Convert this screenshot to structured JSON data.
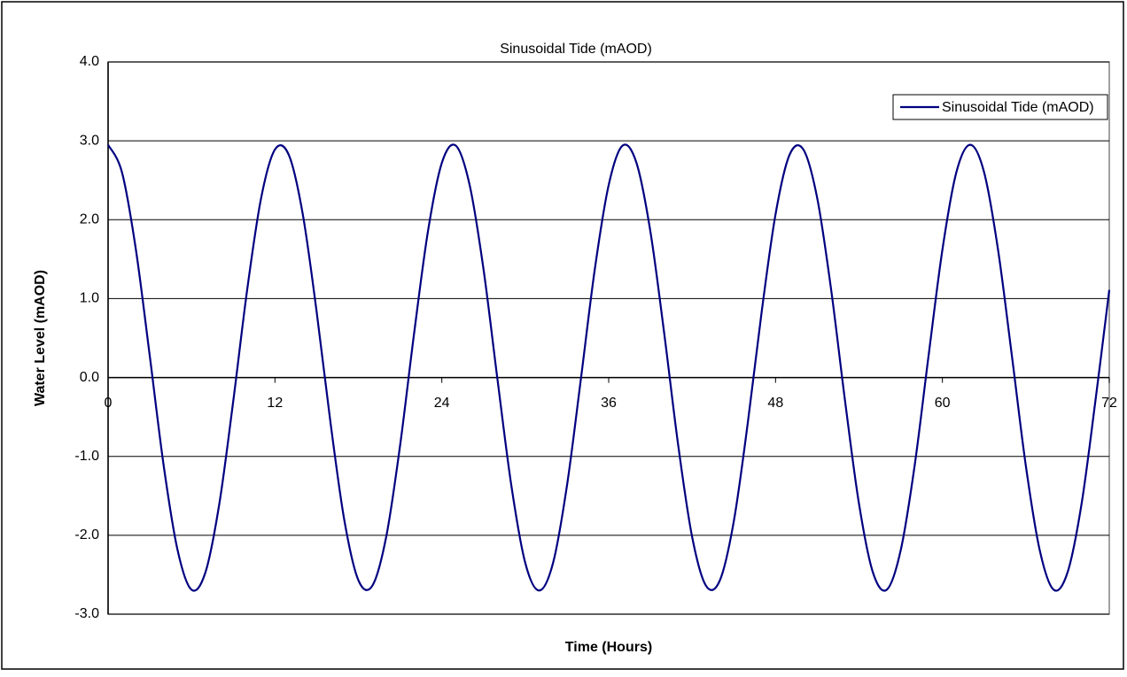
{
  "chart_data": {
    "type": "line",
    "title": "Sinusoidal Tide (mAOD)",
    "xlabel": "Time (Hours)",
    "ylabel": "Water Level (mAOD)",
    "x": [
      0,
      1,
      2,
      3,
      4,
      5,
      6,
      7,
      8,
      9,
      10,
      11,
      12,
      13,
      14,
      15,
      16,
      17,
      18,
      19,
      20,
      21,
      22,
      23,
      24,
      25,
      26,
      27,
      28,
      29,
      30,
      31,
      32,
      33,
      34,
      35,
      36,
      37,
      38,
      39,
      40,
      41,
      42,
      43,
      44,
      45,
      46,
      47,
      48,
      49,
      50,
      51,
      52,
      53,
      54,
      55,
      56,
      57,
      58,
      59,
      60,
      61,
      62,
      63,
      64,
      65,
      66,
      67,
      68,
      69,
      70,
      71,
      72
    ],
    "series": [
      {
        "name": "Sinusoidal Tide (mAOD)",
        "color": "#000080",
        "values": [
          2.95,
          2.6,
          1.62,
          0.27,
          -1.12,
          -2.19,
          -2.69,
          -2.47,
          -1.6,
          -0.3,
          1.11,
          2.27,
          2.89,
          2.82,
          2.07,
          0.83,
          -0.58,
          -1.82,
          -2.57,
          -2.64,
          -2.02,
          -0.86,
          0.55,
          1.85,
          2.72,
          2.94,
          2.44,
          1.37,
          -0.02,
          -1.37,
          -2.35,
          -2.7,
          -2.35,
          -1.37,
          -0.02,
          1.37,
          2.44,
          2.94,
          2.72,
          1.85,
          0.55,
          -0.86,
          -2.02,
          -2.64,
          -2.57,
          -1.82,
          -0.58,
          0.83,
          2.07,
          2.82,
          2.89,
          2.27,
          1.11,
          -0.3,
          -1.6,
          -2.47,
          -2.69,
          -2.19,
          -1.12,
          0.27,
          1.62,
          2.6,
          2.95,
          2.6,
          1.62,
          0.27,
          -1.12,
          -2.19,
          -2.69,
          -2.47,
          -1.61,
          -0.3,
          1.11
        ]
      }
    ],
    "xlim": [
      0,
      72
    ],
    "xticks": [
      0,
      12,
      24,
      36,
      48,
      60,
      72
    ],
    "ylim": [
      -3,
      4
    ],
    "yticks": [
      {
        "value": -3,
        "label": "-3.0"
      },
      {
        "value": -2,
        "label": "-2.0"
      },
      {
        "value": -1,
        "label": "-1.0"
      },
      {
        "value": 0,
        "label": "0.0"
      },
      {
        "value": 1,
        "label": "1.0"
      },
      {
        "value": 2,
        "label": "2.0"
      },
      {
        "value": 3,
        "label": "3.0"
      },
      {
        "value": 4,
        "label": "4.0"
      }
    ],
    "grid": true,
    "legend": "upper right"
  }
}
